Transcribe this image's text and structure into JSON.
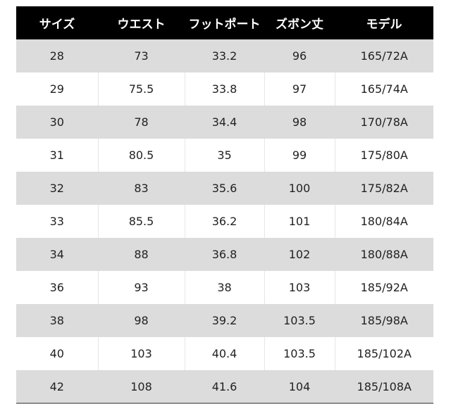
{
  "table": {
    "headers": [
      "サイズ",
      "ウエスト",
      "フットポート",
      "ズボン丈",
      "モデル"
    ],
    "rows": [
      [
        "28",
        "73",
        "33.2",
        "96",
        "165/72A"
      ],
      [
        "29",
        "75.5",
        "33.8",
        "97",
        "165/74A"
      ],
      [
        "30",
        "78",
        "34.4",
        "98",
        "170/78A"
      ],
      [
        "31",
        "80.5",
        "35",
        "99",
        "175/80A"
      ],
      [
        "32",
        "83",
        "35.6",
        "100",
        "175/82A"
      ],
      [
        "33",
        "85.5",
        "36.2",
        "101",
        "180/84A"
      ],
      [
        "34",
        "88",
        "36.8",
        "102",
        "180/88A"
      ],
      [
        "36",
        "93",
        "38",
        "103",
        "185/92A"
      ],
      [
        "38",
        "98",
        "39.2",
        "103.5",
        "185/98A"
      ],
      [
        "40",
        "103",
        "40.4",
        "103.5",
        "185/102A"
      ],
      [
        "42",
        "108",
        "41.6",
        "104",
        "185/108A"
      ]
    ]
  },
  "colors": {
    "header_bg": "#000000",
    "header_text": "#ffffff",
    "row_shaded": "#dcdcdc",
    "row_plain": "#ffffff"
  }
}
